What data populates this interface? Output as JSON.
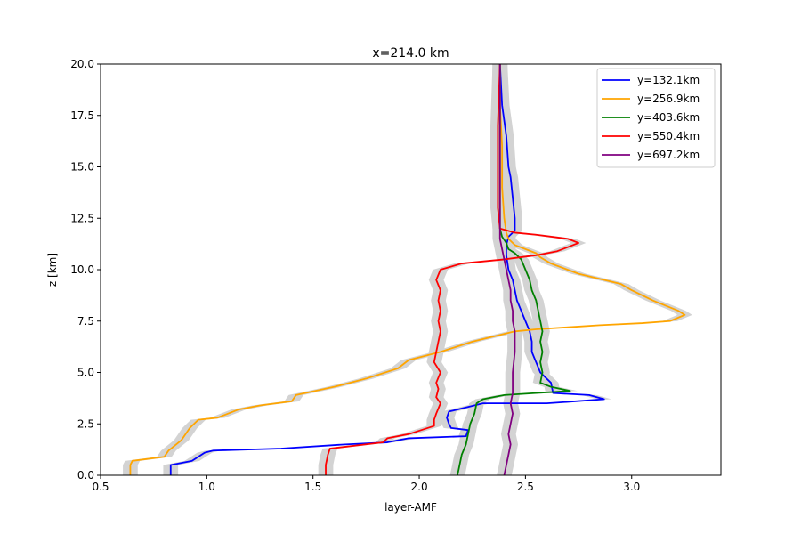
{
  "chart_data": {
    "type": "line",
    "title": "x=214.0 km",
    "xlabel": "layer-AMF",
    "ylabel": "z [km]",
    "xlim": [
      0.5,
      3.42
    ],
    "ylim": [
      0,
      20
    ],
    "xticks": [
      "0.5",
      "1.0",
      "1.5",
      "2.0",
      "2.5",
      "3.0"
    ],
    "yticks": [
      "0.0",
      "2.5",
      "5.0",
      "7.5",
      "10.0",
      "12.5",
      "15.0",
      "17.5",
      "20.0"
    ],
    "grid": false,
    "legend_position": "top-right",
    "uncertainty_band_color": "#d3d3d3",
    "series": [
      {
        "name": "y=132.1km",
        "color": "#0000ff",
        "points": [
          [
            0.83,
            0.0
          ],
          [
            0.83,
            0.5
          ],
          [
            0.93,
            0.7
          ],
          [
            0.99,
            1.1
          ],
          [
            1.03,
            1.2
          ],
          [
            1.35,
            1.3
          ],
          [
            1.65,
            1.5
          ],
          [
            1.85,
            1.6
          ],
          [
            1.95,
            1.8
          ],
          [
            2.22,
            1.9
          ],
          [
            2.23,
            2.2
          ],
          [
            2.15,
            2.3
          ],
          [
            2.14,
            2.5
          ],
          [
            2.13,
            2.8
          ],
          [
            2.14,
            3.1
          ],
          [
            2.3,
            3.5
          ],
          [
            2.6,
            3.5
          ],
          [
            2.87,
            3.7
          ],
          [
            2.8,
            3.9
          ],
          [
            2.63,
            4.0
          ],
          [
            2.62,
            4.5
          ],
          [
            2.57,
            5.0
          ],
          [
            2.55,
            5.5
          ],
          [
            2.53,
            6.0
          ],
          [
            2.53,
            6.5
          ],
          [
            2.52,
            7.0
          ],
          [
            2.5,
            7.5
          ],
          [
            2.48,
            8.0
          ],
          [
            2.46,
            8.5
          ],
          [
            2.45,
            9.0
          ],
          [
            2.44,
            9.5
          ],
          [
            2.42,
            10.0
          ],
          [
            2.41,
            10.7
          ],
          [
            2.41,
            11.2
          ],
          [
            2.42,
            11.6
          ],
          [
            2.45,
            11.9
          ],
          [
            2.45,
            12.5
          ],
          [
            2.44,
            13.5
          ],
          [
            2.43,
            14.5
          ],
          [
            2.42,
            15.0
          ],
          [
            2.41,
            16.5
          ],
          [
            2.39,
            18.0
          ],
          [
            2.38,
            20.0
          ]
        ]
      },
      {
        "name": "y=256.9km",
        "color": "#ffa500",
        "points": [
          [
            0.64,
            0.0
          ],
          [
            0.64,
            0.5
          ],
          [
            0.65,
            0.7
          ],
          [
            0.8,
            0.9
          ],
          [
            0.82,
            1.2
          ],
          [
            0.88,
            1.7
          ],
          [
            0.92,
            2.3
          ],
          [
            0.96,
            2.7
          ],
          [
            1.05,
            2.8
          ],
          [
            1.15,
            3.2
          ],
          [
            1.25,
            3.4
          ],
          [
            1.4,
            3.6
          ],
          [
            1.42,
            3.9
          ],
          [
            1.6,
            4.3
          ],
          [
            1.75,
            4.7
          ],
          [
            1.9,
            5.2
          ],
          [
            1.95,
            5.6
          ],
          [
            2.1,
            6.0
          ],
          [
            2.25,
            6.5
          ],
          [
            2.45,
            7.0
          ],
          [
            2.55,
            7.1
          ],
          [
            2.7,
            7.2
          ],
          [
            2.85,
            7.3
          ],
          [
            3.05,
            7.4
          ],
          [
            3.18,
            7.5
          ],
          [
            3.25,
            7.8
          ],
          [
            3.22,
            8.0
          ],
          [
            3.1,
            8.5
          ],
          [
            3.0,
            9.0
          ],
          [
            2.95,
            9.3
          ],
          [
            2.75,
            9.8
          ],
          [
            2.62,
            10.3
          ],
          [
            2.57,
            10.6
          ],
          [
            2.55,
            10.8
          ],
          [
            2.45,
            11.2
          ],
          [
            2.42,
            11.5
          ],
          [
            2.41,
            11.8
          ],
          [
            2.4,
            12.5
          ],
          [
            2.39,
            14.0
          ],
          [
            2.39,
            16.0
          ],
          [
            2.38,
            18.0
          ],
          [
            2.38,
            20.0
          ]
        ]
      },
      {
        "name": "y=403.6km",
        "color": "#008000",
        "points": [
          [
            2.18,
            0.0
          ],
          [
            2.19,
            0.5
          ],
          [
            2.2,
            1.0
          ],
          [
            2.22,
            1.5
          ],
          [
            2.23,
            2.0
          ],
          [
            2.24,
            2.5
          ],
          [
            2.26,
            3.0
          ],
          [
            2.27,
            3.5
          ],
          [
            2.3,
            3.7
          ],
          [
            2.4,
            3.9
          ],
          [
            2.55,
            4.0
          ],
          [
            2.71,
            4.1
          ],
          [
            2.62,
            4.3
          ],
          [
            2.57,
            4.5
          ],
          [
            2.58,
            5.0
          ],
          [
            2.57,
            5.5
          ],
          [
            2.58,
            6.0
          ],
          [
            2.57,
            6.5
          ],
          [
            2.58,
            7.0
          ],
          [
            2.57,
            7.5
          ],
          [
            2.56,
            8.0
          ],
          [
            2.55,
            8.5
          ],
          [
            2.53,
            9.0
          ],
          [
            2.52,
            9.5
          ],
          [
            2.5,
            10.0
          ],
          [
            2.48,
            10.5
          ],
          [
            2.45,
            10.8
          ],
          [
            2.42,
            11.0
          ],
          [
            2.41,
            11.3
          ],
          [
            2.39,
            11.6
          ],
          [
            2.38,
            12.0
          ],
          [
            2.38,
            13.0
          ],
          [
            2.38,
            15.0
          ],
          [
            2.38,
            17.0
          ],
          [
            2.38,
            20.0
          ]
        ]
      },
      {
        "name": "y=550.4km",
        "color": "#ff0000",
        "points": [
          [
            1.56,
            0.0
          ],
          [
            1.56,
            0.5
          ],
          [
            1.57,
            1.0
          ],
          [
            1.58,
            1.3
          ],
          [
            1.83,
            1.6
          ],
          [
            1.85,
            1.8
          ],
          [
            1.95,
            2.0
          ],
          [
            2.07,
            2.4
          ],
          [
            2.07,
            2.7
          ],
          [
            2.08,
            3.0
          ],
          [
            2.1,
            3.5
          ],
          [
            2.08,
            3.8
          ],
          [
            2.09,
            4.2
          ],
          [
            2.08,
            4.5
          ],
          [
            2.1,
            5.0
          ],
          [
            2.07,
            5.5
          ],
          [
            2.08,
            6.0
          ],
          [
            2.09,
            6.5
          ],
          [
            2.1,
            7.0
          ],
          [
            2.09,
            7.5
          ],
          [
            2.1,
            8.0
          ],
          [
            2.09,
            8.5
          ],
          [
            2.1,
            9.0
          ],
          [
            2.08,
            9.5
          ],
          [
            2.1,
            10.0
          ],
          [
            2.2,
            10.3
          ],
          [
            2.4,
            10.5
          ],
          [
            2.55,
            10.7
          ],
          [
            2.65,
            10.9
          ],
          [
            2.75,
            11.3
          ],
          [
            2.7,
            11.5
          ],
          [
            2.55,
            11.7
          ],
          [
            2.45,
            11.8
          ],
          [
            2.38,
            12.0
          ],
          [
            2.37,
            13.0
          ],
          [
            2.37,
            15.0
          ],
          [
            2.37,
            17.0
          ],
          [
            2.38,
            20.0
          ]
        ]
      },
      {
        "name": "y=697.2km",
        "color": "#800080",
        "points": [
          [
            2.4,
            0.0
          ],
          [
            2.41,
            0.5
          ],
          [
            2.42,
            1.0
          ],
          [
            2.43,
            1.5
          ],
          [
            2.42,
            2.0
          ],
          [
            2.43,
            2.5
          ],
          [
            2.44,
            3.0
          ],
          [
            2.43,
            3.5
          ],
          [
            2.44,
            4.0
          ],
          [
            2.44,
            5.0
          ],
          [
            2.45,
            6.0
          ],
          [
            2.45,
            7.0
          ],
          [
            2.44,
            7.5
          ],
          [
            2.44,
            8.0
          ],
          [
            2.43,
            8.5
          ],
          [
            2.43,
            9.0
          ],
          [
            2.42,
            9.5
          ],
          [
            2.41,
            10.0
          ],
          [
            2.4,
            10.5
          ],
          [
            2.39,
            11.0
          ],
          [
            2.38,
            11.5
          ],
          [
            2.38,
            12.0
          ],
          [
            2.38,
            14.0
          ],
          [
            2.38,
            16.0
          ],
          [
            2.38,
            18.0
          ],
          [
            2.38,
            20.0
          ]
        ]
      }
    ]
  }
}
